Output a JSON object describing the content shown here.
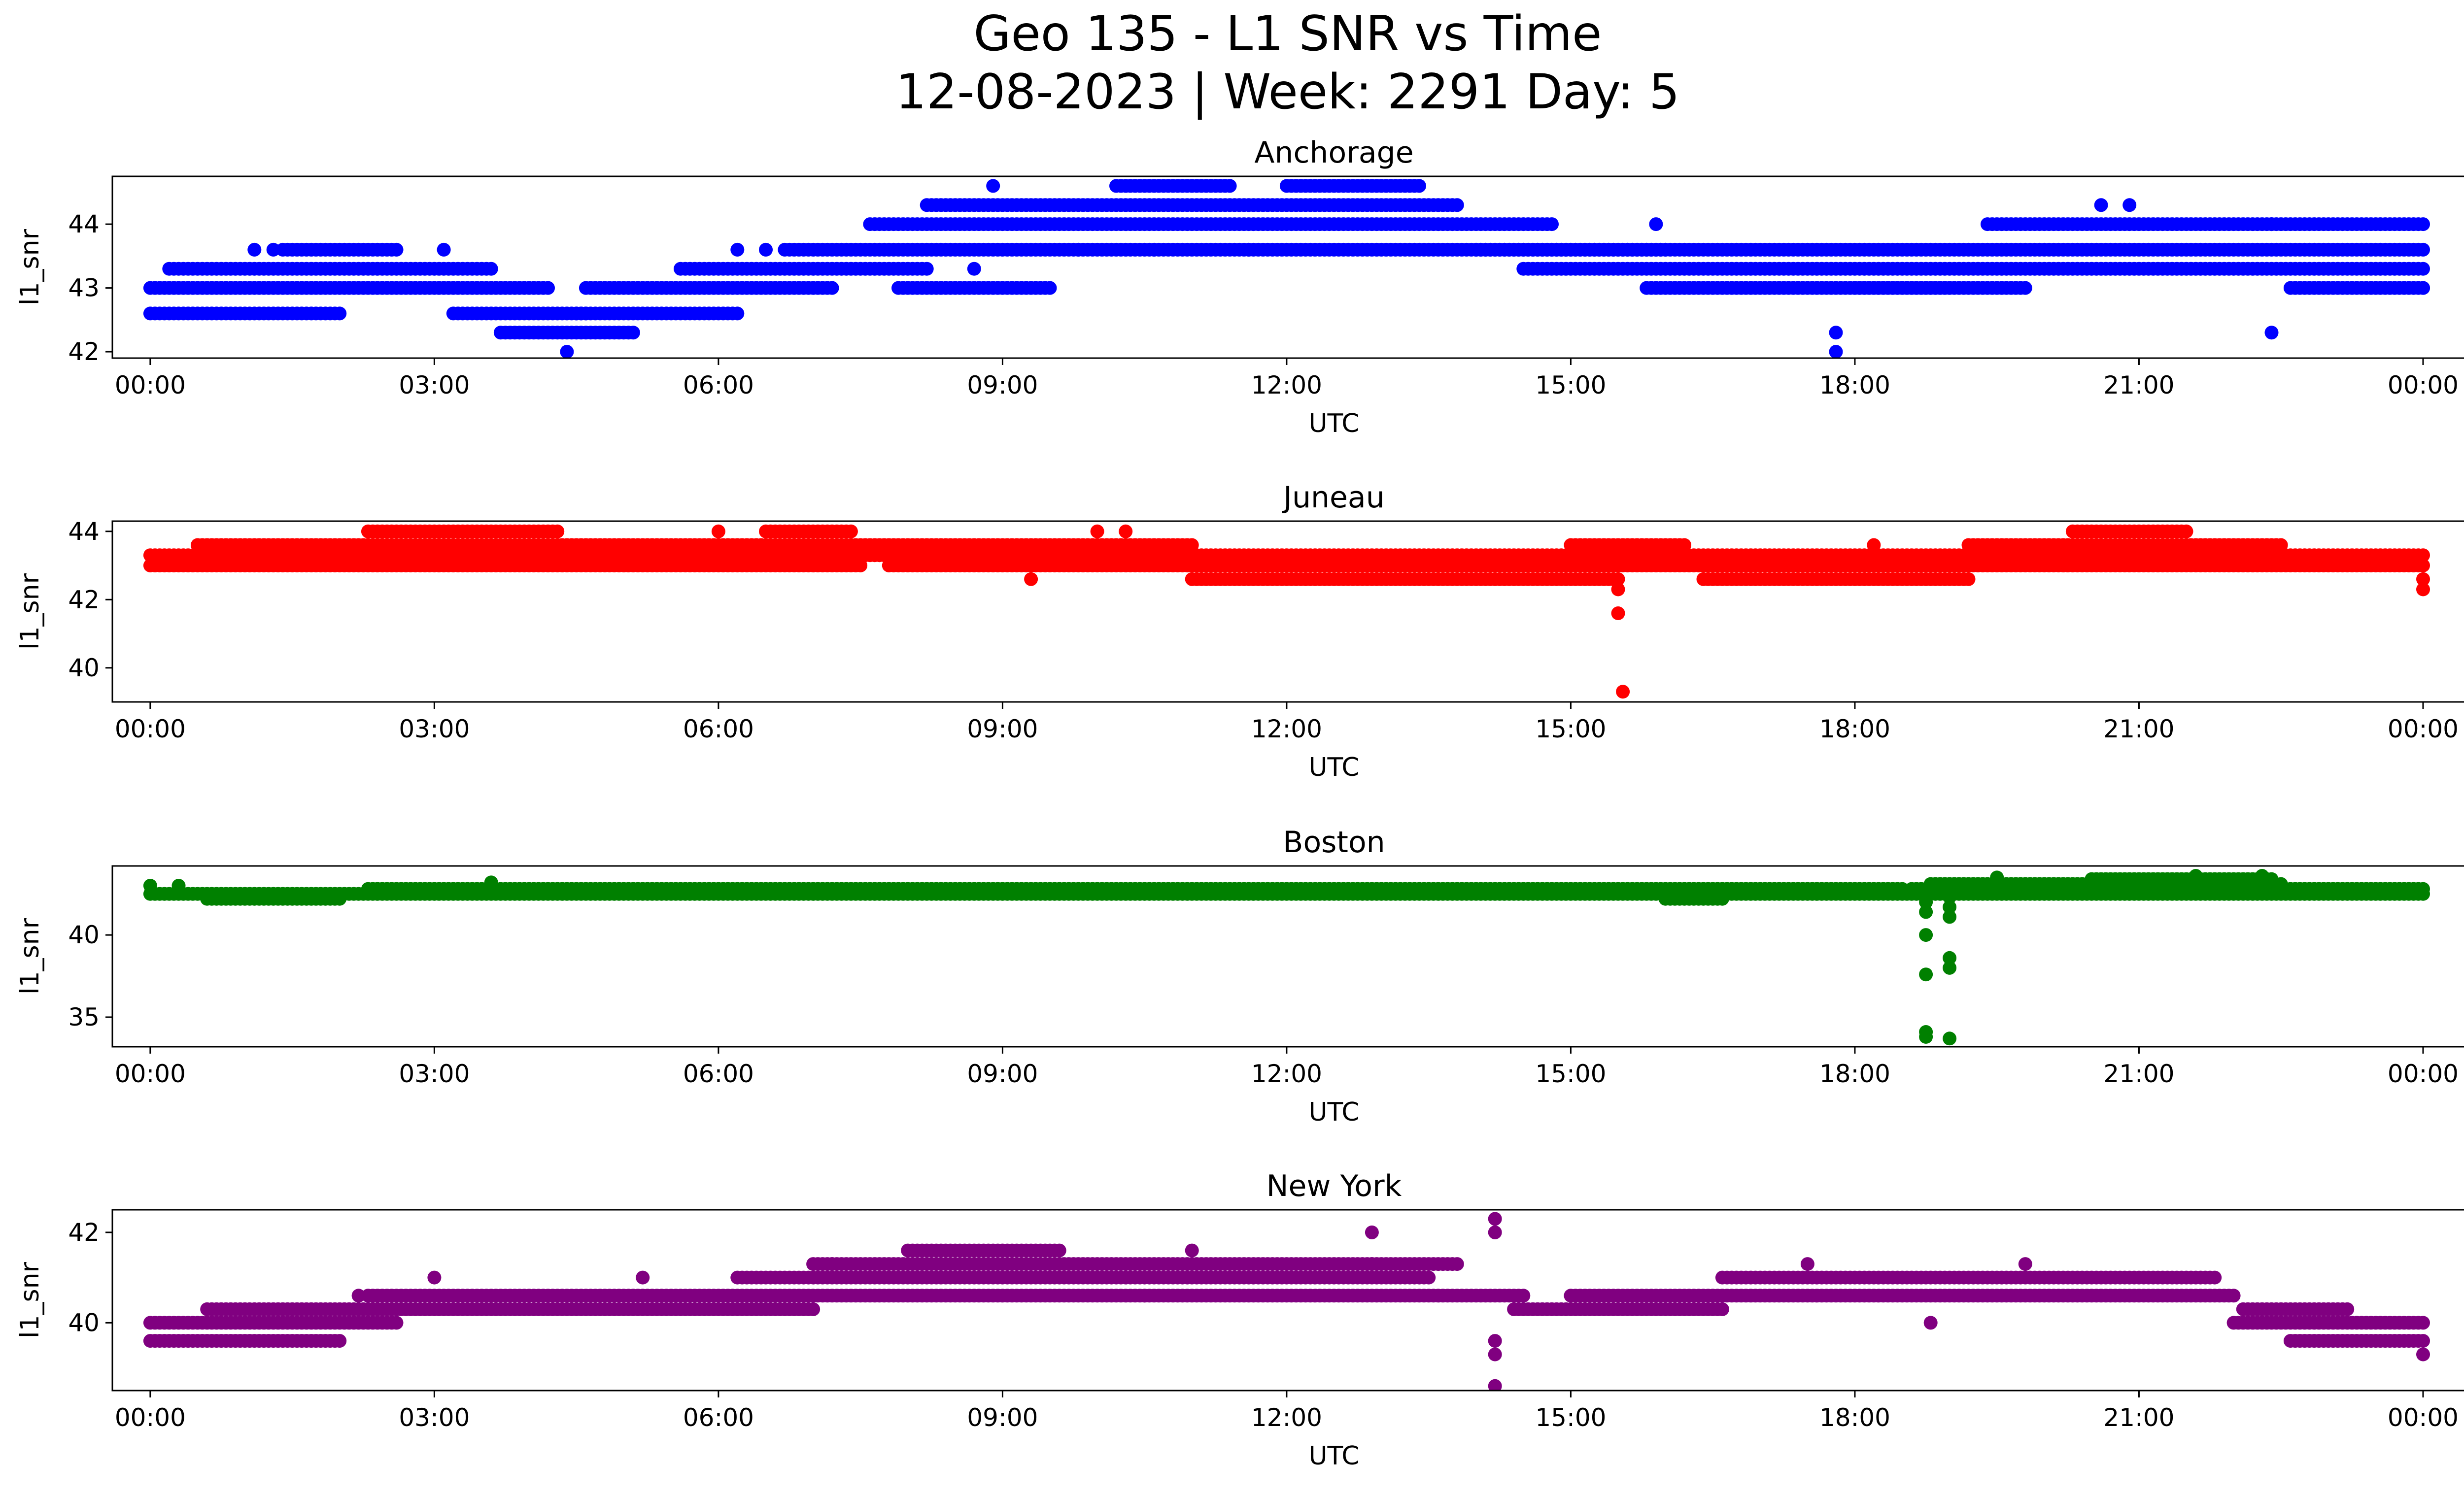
{
  "figure": {
    "title_line1": "Geo 135 - L1 SNR vs Time",
    "title_line2": "12-08-2023 | Week: 2291 Day: 5"
  },
  "chart_data": [
    {
      "type": "scatter",
      "title": "Anchorage",
      "xlabel": "UTC",
      "ylabel": "l1_snr",
      "color": "#0000ff",
      "xlim": [
        -0.4,
        25.4
      ],
      "ylim": [
        41.9,
        44.75
      ],
      "xticks": [
        0,
        3,
        6,
        9,
        12,
        15,
        18,
        21,
        24
      ],
      "xtick_labels": [
        "00:00",
        "03:00",
        "06:00",
        "09:00",
        "12:00",
        "15:00",
        "18:00",
        "21:00",
        "00:00"
      ],
      "yticks": [
        42,
        43,
        44
      ],
      "ytick_labels": [
        "42",
        "43",
        "44"
      ],
      "bands": [
        [
          0.0,
          2.0,
          42.6
        ],
        [
          0.0,
          4.2,
          43.0
        ],
        [
          0.2,
          3.6,
          43.3
        ],
        [
          1.4,
          2.6,
          43.6
        ],
        [
          3.2,
          4.6,
          42.6
        ],
        [
          3.7,
          5.1,
          42.3
        ],
        [
          4.5,
          6.2,
          42.6
        ],
        [
          4.6,
          7.2,
          43.0
        ],
        [
          5.6,
          8.2,
          43.3
        ],
        [
          6.7,
          9.8,
          43.6
        ],
        [
          7.9,
          9.5,
          43.0
        ],
        [
          7.6,
          14.8,
          44.0
        ],
        [
          8.2,
          13.8,
          44.3
        ],
        [
          10.2,
          11.4,
          44.6
        ],
        [
          12.0,
          13.4,
          44.6
        ],
        [
          9.8,
          16.0,
          43.6
        ],
        [
          14.0,
          24.0,
          43.6
        ],
        [
          14.5,
          24.0,
          43.3
        ],
        [
          15.8,
          19.8,
          43.0
        ],
        [
          19.4,
          24.0,
          44.0
        ],
        [
          22.6,
          24.0,
          43.0
        ],
        [
          18.0,
          19.0,
          43.0
        ]
      ],
      "points": [
        [
          4.4,
          42.0
        ],
        [
          17.8,
          42.0
        ],
        [
          17.8,
          42.3
        ],
        [
          22.4,
          42.3
        ],
        [
          8.9,
          44.6
        ],
        [
          20.6,
          44.3
        ],
        [
          20.9,
          44.3
        ],
        [
          15.9,
          44.0
        ],
        [
          22.4,
          44.0
        ],
        [
          3.1,
          43.6
        ],
        [
          6.2,
          43.6
        ],
        [
          6.5,
          43.6
        ],
        [
          1.1,
          43.6
        ],
        [
          1.3,
          43.6
        ],
        [
          24.0,
          43.0
        ],
        [
          11.6,
          43.6
        ],
        [
          10.6,
          43.6
        ],
        [
          8.7,
          43.3
        ]
      ]
    },
    {
      "type": "scatter",
      "title": "Juneau",
      "xlabel": "UTC",
      "ylabel": "l1_snr",
      "color": "#ff0000",
      "xlim": [
        -0.4,
        25.4
      ],
      "ylim": [
        39.0,
        44.3
      ],
      "xticks": [
        0,
        3,
        6,
        9,
        12,
        15,
        18,
        21,
        24
      ],
      "xtick_labels": [
        "00:00",
        "03:00",
        "06:00",
        "09:00",
        "12:00",
        "15:00",
        "18:00",
        "21:00",
        "00:00"
      ],
      "yticks": [
        40,
        42,
        44
      ],
      "ytick_labels": [
        "40",
        "42",
        "44"
      ],
      "bands": [
        [
          0.0,
          24.0,
          43.3
        ],
        [
          0.0,
          7.5,
          43.0
        ],
        [
          0.5,
          11.0,
          43.6
        ],
        [
          2.3,
          4.3,
          44.0
        ],
        [
          7.8,
          24.0,
          43.0
        ],
        [
          11.0,
          15.5,
          42.6
        ],
        [
          16.4,
          19.2,
          42.6
        ],
        [
          19.2,
          22.5,
          43.6
        ],
        [
          20.3,
          21.5,
          44.0
        ],
        [
          6.5,
          7.4,
          44.0
        ],
        [
          15.0,
          16.2,
          43.6
        ]
      ],
      "points": [
        [
          15.55,
          39.3
        ],
        [
          15.5,
          41.6
        ],
        [
          15.5,
          42.3
        ],
        [
          24.0,
          42.3
        ],
        [
          24.0,
          42.6
        ],
        [
          23.9,
          43.0
        ],
        [
          10.0,
          44.0
        ],
        [
          10.3,
          44.0
        ],
        [
          6.0,
          44.0
        ],
        [
          9.3,
          42.6
        ],
        [
          12.2,
          42.6
        ],
        [
          18.2,
          43.6
        ]
      ]
    },
    {
      "type": "scatter",
      "title": "Boston",
      "xlabel": "UTC",
      "ylabel": "l1_snr",
      "color": "#008000",
      "xlim": [
        -0.4,
        25.4
      ],
      "ylim": [
        33.2,
        44.2
      ],
      "xticks": [
        0,
        3,
        6,
        9,
        12,
        15,
        18,
        21,
        24
      ],
      "xtick_labels": [
        "00:00",
        "03:00",
        "06:00",
        "09:00",
        "12:00",
        "15:00",
        "18:00",
        "21:00",
        "00:00"
      ],
      "yticks": [
        35,
        40
      ],
      "ytick_labels": [
        "35",
        "40"
      ],
      "bands": [
        [
          0.0,
          24.0,
          42.5
        ],
        [
          2.3,
          18.5,
          42.8
        ],
        [
          18.6,
          24.0,
          42.8
        ],
        [
          18.8,
          22.5,
          43.1
        ],
        [
          20.5,
          22.4,
          43.4
        ],
        [
          0.6,
          2.0,
          42.2
        ],
        [
          16.0,
          16.6,
          42.2
        ]
      ],
      "points": [
        [
          18.75,
          33.8
        ],
        [
          18.75,
          34.1
        ],
        [
          19.0,
          33.7
        ],
        [
          18.75,
          37.6
        ],
        [
          19.0,
          38.0
        ],
        [
          19.0,
          38.6
        ],
        [
          18.75,
          40.0
        ],
        [
          18.75,
          41.4
        ],
        [
          19.0,
          41.1
        ],
        [
          19.0,
          41.7
        ],
        [
          18.75,
          42.0
        ],
        [
          19.0,
          42.3
        ],
        [
          0.0,
          43.0
        ],
        [
          0.3,
          43.0
        ],
        [
          3.6,
          43.2
        ],
        [
          21.6,
          43.6
        ],
        [
          22.3,
          43.6
        ],
        [
          19.5,
          43.5
        ]
      ]
    },
    {
      "type": "scatter",
      "title": "New York",
      "xlabel": "UTC",
      "ylabel": "l1_snr",
      "color": "#800080",
      "xlim": [
        -0.4,
        25.4
      ],
      "ylim": [
        38.5,
        42.5
      ],
      "xticks": [
        0,
        3,
        6,
        9,
        12,
        15,
        18,
        21,
        24
      ],
      "xtick_labels": [
        "00:00",
        "03:00",
        "06:00",
        "09:00",
        "12:00",
        "15:00",
        "18:00",
        "21:00",
        "00:00"
      ],
      "yticks": [
        40,
        42
      ],
      "ytick_labels": [
        "40",
        "42"
      ],
      "bands": [
        [
          0.0,
          2.6,
          40.0
        ],
        [
          0.0,
          2.0,
          39.6
        ],
        [
          0.6,
          2.4,
          40.3
        ],
        [
          2.2,
          7.0,
          40.3
        ],
        [
          2.3,
          14.5,
          40.6
        ],
        [
          6.2,
          13.5,
          41.0
        ],
        [
          7.0,
          12.9,
          41.3
        ],
        [
          8.0,
          9.6,
          41.6
        ],
        [
          14.4,
          16.6,
          40.3
        ],
        [
          15.0,
          22.0,
          40.6
        ],
        [
          16.6,
          21.8,
          41.0
        ],
        [
          22.0,
          24.0,
          40.0
        ],
        [
          22.6,
          24.0,
          39.6
        ],
        [
          22.1,
          23.2,
          40.3
        ],
        [
          12.9,
          13.8,
          41.3
        ]
      ],
      "points": [
        [
          14.2,
          38.6
        ],
        [
          14.2,
          39.3
        ],
        [
          14.2,
          39.6
        ],
        [
          14.2,
          42.3
        ],
        [
          14.2,
          42.0
        ],
        [
          12.9,
          42.0
        ],
        [
          24.0,
          39.3
        ],
        [
          18.8,
          40.0
        ],
        [
          10.5,
          40.6
        ],
        [
          17.5,
          41.3
        ],
        [
          19.8,
          41.3
        ],
        [
          11.0,
          41.6
        ],
        [
          3.0,
          41.0
        ],
        [
          5.2,
          41.0
        ],
        [
          7.2,
          41.3
        ],
        [
          2.2,
          40.6
        ]
      ]
    }
  ]
}
